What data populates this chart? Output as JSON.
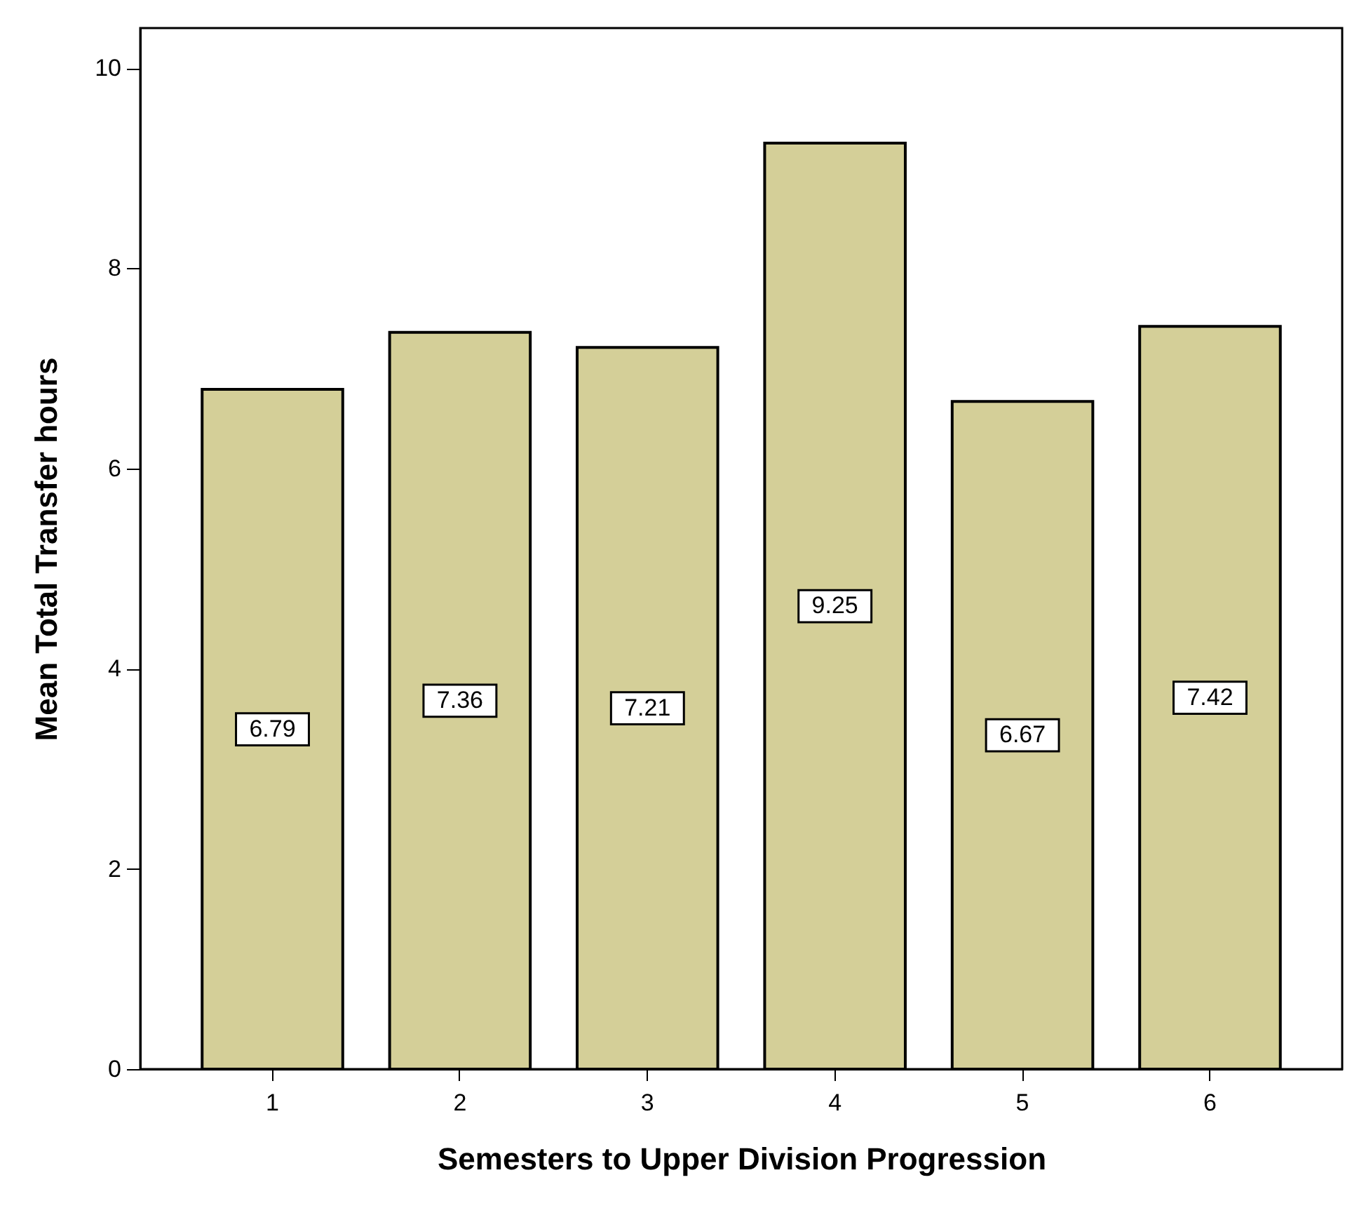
{
  "chart_data": {
    "type": "bar",
    "xlabel": "Semesters to Upper Division Progression",
    "ylabel": "Mean Total Transfer hours",
    "categories": [
      "1",
      "2",
      "3",
      "4",
      "5",
      "6"
    ],
    "values": [
      6.79,
      7.36,
      7.21,
      9.25,
      6.67,
      7.42
    ],
    "color": "#d4cf98",
    "ylim": [
      0,
      10.4
    ],
    "yticks": [
      0,
      2,
      4,
      6,
      8,
      10
    ],
    "grid": false,
    "data_labels": true
  }
}
